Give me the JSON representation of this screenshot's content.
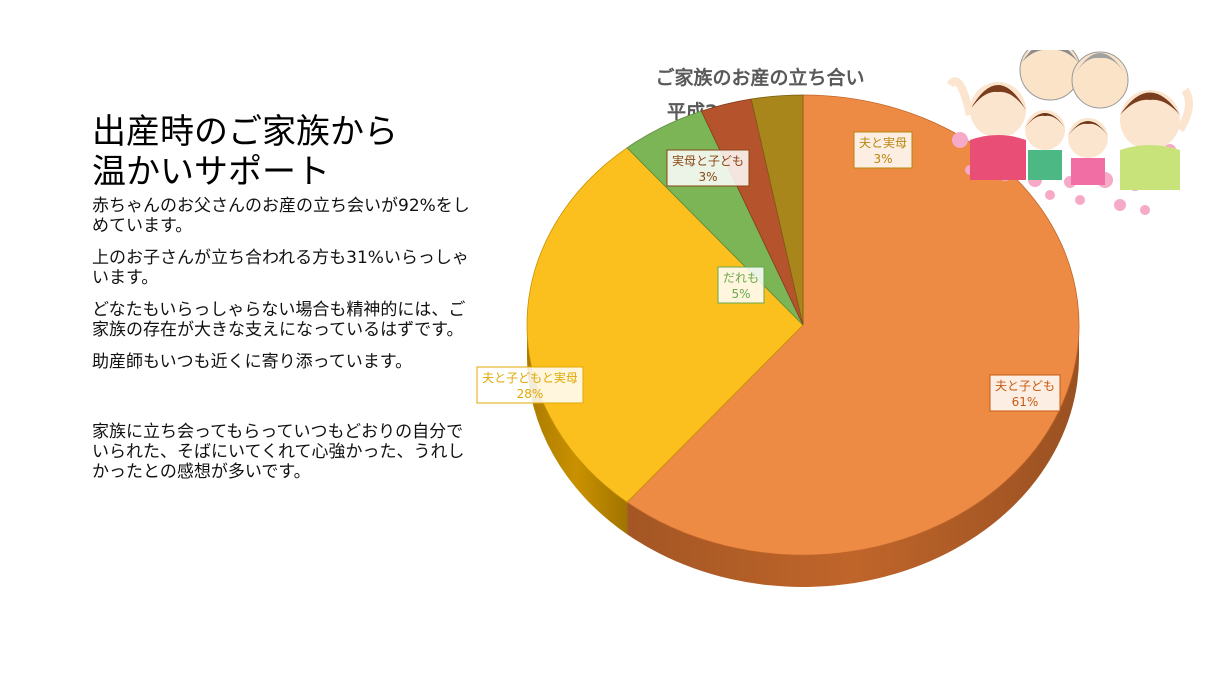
{
  "heading": {
    "line1": "出産時のご家族から",
    "line2": "温かいサポート"
  },
  "paragraphs": [
    "赤ちゃんのお父さんのお産の立ち会いが92%をしめています。",
    "上のお子さんが立ち合われる方も31%いらっしゃいます。",
    "どなたもいらっしゃらない場合も精神的には、ご家族の存在が大きな支えになっているはずです。",
    "助産師もいつも近くに寄り添っています。",
    "家族に立ち会ってもらっていつもどおりの自分でいられた、そばにいてくれて心強かった、うれしかったとの感想が多いです。"
  ],
  "chart_data": {
    "type": "pie",
    "title_line1": "ご家族のお産の立ち合い",
    "title_line2": "平成28年～平成30年",
    "slices": [
      {
        "name": "夫と子ども",
        "value": 61,
        "label": "61%",
        "color": "#ED8B45",
        "dark": "#C0652A",
        "label_color": "#C55A11"
      },
      {
        "name": "夫と子どもと実母",
        "value": 28,
        "label": "28%",
        "color": "#FBC01E",
        "dark": "#C99100",
        "label_color": "#E0A800"
      },
      {
        "name": "だれも",
        "value": 5,
        "label": "5%",
        "color": "#7BB556",
        "dark": "#5A8A3C",
        "label_color": "#6AA84F"
      },
      {
        "name": "実母と子ども",
        "value": 3,
        "label": "3%",
        "color": "#B5532C",
        "dark": "#8A3A1C",
        "label_color": "#8B4513"
      },
      {
        "name": "夫と実母",
        "value": 3,
        "label": "3%",
        "color": "#A8861C",
        "dark": "#7A6010",
        "label_color": "#B8860B"
      }
    ],
    "legend": "none"
  },
  "illustration": {
    "icon": "family-illustration-icon"
  }
}
